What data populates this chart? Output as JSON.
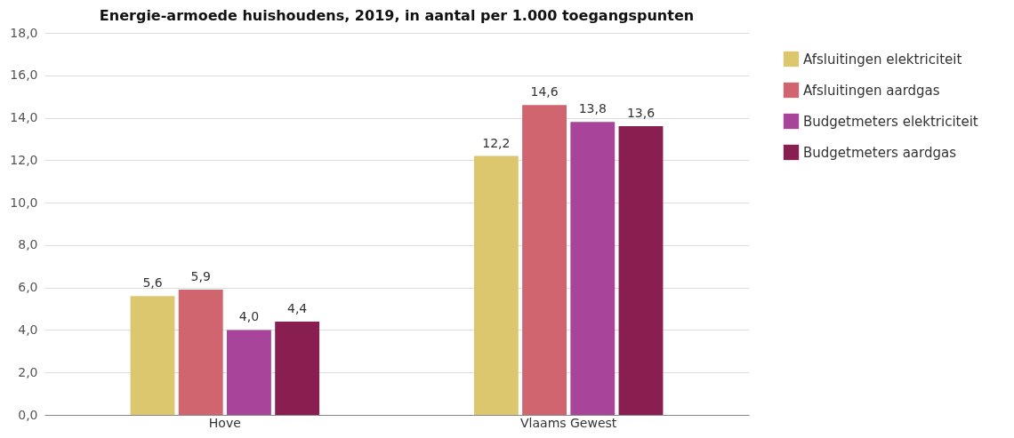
{
  "chart_data": {
    "type": "bar",
    "title": "Energie-armoede huishoudens, 2019, in aantal per 1.000 toegangspunten",
    "categories": [
      "Hove",
      "Vlaams Gewest"
    ],
    "series": [
      {
        "name": "Afsluitingen elektriciteit",
        "color": "#dcc66e",
        "values": [
          5.6,
          12.2
        ],
        "value_labels": [
          "5,6",
          "12,2"
        ]
      },
      {
        "name": "Afsluitingen aardgas",
        "color": "#d0646f",
        "values": [
          5.9,
          14.6
        ],
        "value_labels": [
          "5,9",
          "14,6"
        ]
      },
      {
        "name": "Budgetmeters elektriciteit",
        "color": "#a9449b",
        "values": [
          4.0,
          13.8
        ],
        "value_labels": [
          "4,0",
          "13,8"
        ]
      },
      {
        "name": "Budgetmeters aardgas",
        "color": "#891f50",
        "values": [
          4.4,
          13.6
        ],
        "value_labels": [
          "4,4",
          "13,6"
        ]
      }
    ],
    "ylim": [
      0,
      18
    ],
    "yticks": [
      {
        "value": 0,
        "label": "0,0"
      },
      {
        "value": 2,
        "label": "2,0"
      },
      {
        "value": 4,
        "label": "4,0"
      },
      {
        "value": 6,
        "label": "6,0"
      },
      {
        "value": 8,
        "label": "8,0"
      },
      {
        "value": 10,
        "label": "10,0"
      },
      {
        "value": 12,
        "label": "12,0"
      },
      {
        "value": 14,
        "label": "14,0"
      },
      {
        "value": 16,
        "label": "16,0"
      },
      {
        "value": 18,
        "label": "18,0"
      }
    ],
    "grid": "y",
    "legend": "right"
  }
}
